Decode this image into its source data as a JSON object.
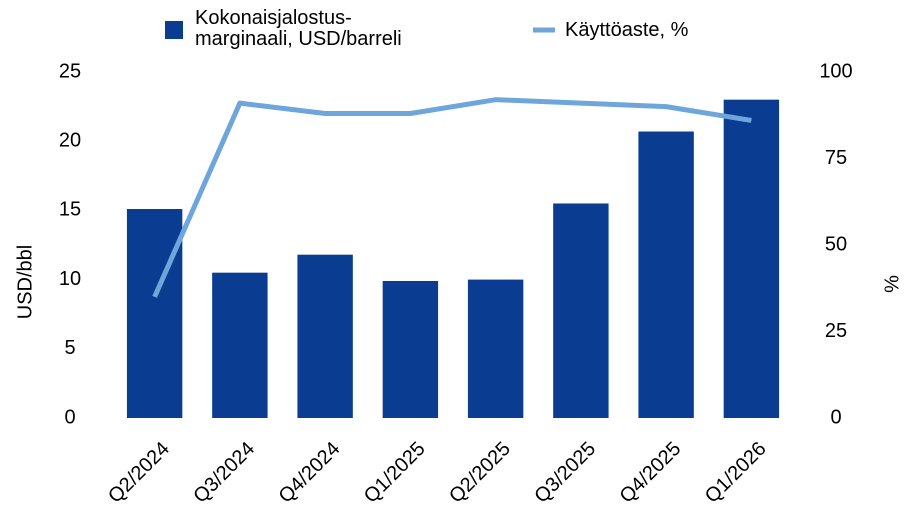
{
  "chart_data": {
    "type": "bar-line",
    "categories": [
      "Q2/2024",
      "Q3/2024",
      "Q4/2024",
      "Q1/2025",
      "Q2/2025",
      "Q3/2025",
      "Q4/2025",
      "Q1/2026"
    ],
    "series": [
      {
        "name": "Kokonaisjalostus-marginaali, USD/barreli",
        "type": "bar",
        "color": "#0a3d91",
        "axis": "y",
        "values": [
          15.1,
          10.5,
          11.8,
          9.9,
          10.0,
          15.5,
          20.7,
          23.0
        ]
      },
      {
        "name": "Käyttöaste, %",
        "type": "line",
        "color": "#6ea6dc",
        "axis": "y2",
        "values": [
          35,
          91,
          88,
          88,
          92,
          91,
          90,
          86
        ]
      }
    ],
    "ylabel": "USD/bbl",
    "y2label": "%",
    "ylim": [
      0,
      25
    ],
    "yticks": [
      0,
      5,
      10,
      15,
      20,
      25
    ],
    "y2lim": [
      0,
      100
    ],
    "y2ticks": [
      0,
      25,
      50,
      75,
      100
    ],
    "grid": false
  }
}
